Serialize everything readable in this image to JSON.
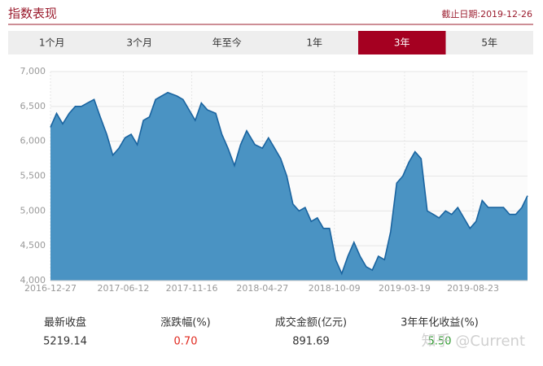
{
  "header": {
    "title": "指数表现",
    "date": "截止日期:2019-12-26"
  },
  "tabs": [
    "1个月",
    "3个月",
    "年至今",
    "1年",
    "3年",
    "5年"
  ],
  "active_tab": 4,
  "chart_data": {
    "type": "area",
    "x": [
      "2016-12-27",
      "2017-01-10",
      "2017-01-24",
      "2017-02-08",
      "2017-02-22",
      "2017-03-08",
      "2017-03-22",
      "2017-04-06",
      "2017-04-20",
      "2017-05-05",
      "2017-05-19",
      "2017-06-02",
      "2017-06-16",
      "2017-06-30",
      "2017-07-14",
      "2017-07-28",
      "2017-08-11",
      "2017-08-25",
      "2017-09-08",
      "2017-09-22",
      "2017-10-13",
      "2017-10-27",
      "2017-11-10",
      "2017-11-24",
      "2017-12-08",
      "2017-12-22",
      "2018-01-10",
      "2018-01-24",
      "2018-02-07",
      "2018-02-22",
      "2018-03-08",
      "2018-03-22",
      "2018-04-10",
      "2018-04-27",
      "2018-05-11",
      "2018-05-25",
      "2018-06-08",
      "2018-06-22",
      "2018-07-06",
      "2018-07-20",
      "2018-08-03",
      "2018-08-17",
      "2018-08-31",
      "2018-09-14",
      "2018-09-28",
      "2018-10-12",
      "2018-10-26",
      "2018-11-09",
      "2018-11-23",
      "2018-12-07",
      "2018-12-21",
      "2019-01-04",
      "2019-01-18",
      "2019-02-01",
      "2019-02-15",
      "2019-03-01",
      "2019-03-15",
      "2019-03-29",
      "2019-04-12",
      "2019-04-26",
      "2019-05-10",
      "2019-05-24",
      "2019-06-06",
      "2019-06-21",
      "2019-07-05",
      "2019-07-19",
      "2019-08-02",
      "2019-08-16",
      "2019-08-30",
      "2019-09-13",
      "2019-09-27",
      "2019-10-18",
      "2019-11-01",
      "2019-11-15",
      "2019-11-29",
      "2019-12-13",
      "2019-12-26"
    ],
    "series": [
      {
        "color": "#4a93c3",
        "line_color": "#1a64a0",
        "values": [
          6200,
          6400,
          6250,
          6400,
          6500,
          6500,
          6550,
          6600,
          6350,
          6100,
          5800,
          5900,
          6050,
          6100,
          5950,
          6300,
          6350,
          6600,
          6650,
          6700,
          6650,
          6600,
          6450,
          6300,
          6550,
          6450,
          6400,
          6100,
          5900,
          5650,
          5950,
          6150,
          5950,
          5900,
          6050,
          5900,
          5750,
          5500,
          5100,
          5000,
          5050,
          4850,
          4900,
          4750,
          4750,
          4300,
          4100,
          4350,
          4550,
          4350,
          4200,
          4150,
          4350,
          4300,
          4700,
          5400,
          5500,
          5700,
          5850,
          5750,
          5000,
          4950,
          4900,
          5000,
          4950,
          5050,
          4900,
          4750,
          4850,
          5150,
          5050,
          5050,
          5050,
          4950,
          4950,
          5050,
          5219.14
        ]
      }
    ],
    "xlim": [
      "2016-12-27",
      "2019-12-26"
    ],
    "xticks": [
      "2016-12-27",
      "2017-06-12",
      "2017-11-16",
      "2018-04-27",
      "2018-10-09",
      "2019-03-19",
      "2019-08-23"
    ],
    "ylim": [
      4000,
      7000
    ],
    "yticks": [
      {
        "value": 4000,
        "label": "4,000"
      },
      {
        "value": 4500,
        "label": "4,500"
      },
      {
        "value": 5000,
        "label": "5,000"
      },
      {
        "value": 5500,
        "label": "5,500"
      },
      {
        "value": 6000,
        "label": "6,000"
      },
      {
        "value": 6500,
        "label": "6,500"
      },
      {
        "value": 7000,
        "label": "7,000"
      }
    ],
    "grid": true
  },
  "stats": [
    {
      "label": "最新收盘",
      "value": "5219.14",
      "color": "#333333"
    },
    {
      "label": "涨跌幅(%)",
      "value": "0.70",
      "color": "#e0281e"
    },
    {
      "label": "成交金额(亿元)",
      "value": "891.69",
      "color": "#333333"
    },
    {
      "label": "3年年化收益(%)",
      "value": "5.50",
      "color": "#2a9a2a"
    }
  ],
  "watermark": "知乎 @Current"
}
